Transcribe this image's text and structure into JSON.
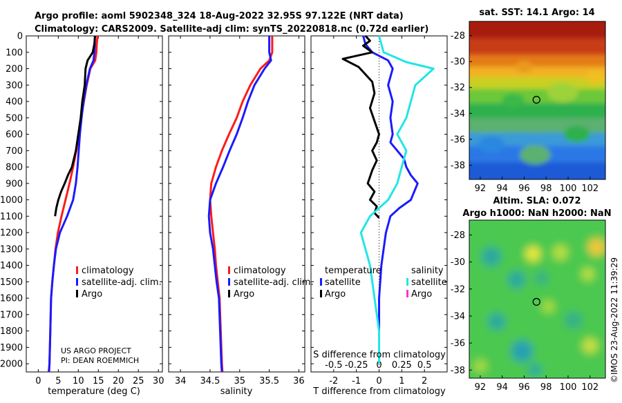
{
  "header": {
    "line1": "Argo profile: aoml 5902348_324 18-Aug-2022 32.95S 97.122E (NRT data)",
    "line2": "Climatology: CARS2009. Satellite-adj clim: synTS_20220818.nc (0.72d earlier)"
  },
  "colors": {
    "climatology": "#ff1a1a",
    "satellite": "#1a1aff",
    "argo": "#000000",
    "sat_salinity": "#22e5e5",
    "argo_salinity": "#ff33cc"
  },
  "chart_data": [
    {
      "type": "line",
      "title": "",
      "xlabel": "temperature (deg C)",
      "ylabel": "",
      "xlim": [
        -3,
        31
      ],
      "ylim": [
        2050,
        0
      ],
      "xticks": [
        "0",
        "5",
        "10",
        "15",
        "20",
        "25",
        "30"
      ],
      "yticks": [
        "0",
        "100",
        "200",
        "300",
        "400",
        "500",
        "600",
        "700",
        "800",
        "900",
        "1000",
        "1100",
        "1200",
        "1300",
        "1400",
        "1500",
        "1600",
        "1700",
        "1800",
        "1900",
        "2000"
      ],
      "legend": [
        "climatology",
        "satellite-adj. clim.",
        "Argo"
      ],
      "credit": [
        "US ARGO PROJECT",
        "PI: DEAN ROEMMICH"
      ],
      "series": [
        {
          "name": "climatology",
          "x": [
            14.8,
            14.6,
            14.5,
            14.2,
            13.0,
            12.1,
            11.4,
            10.7,
            10.1,
            9.5,
            8.7,
            7.8,
            6.8,
            5.8,
            4.9,
            4.3,
            3.9,
            3.5,
            3.2,
            3.0,
            2.8,
            2.6
          ],
          "depth": [
            0,
            50,
            100,
            150,
            200,
            300,
            400,
            500,
            600,
            700,
            800,
            900,
            1000,
            1100,
            1200,
            1300,
            1400,
            1500,
            1600,
            1800,
            2000,
            2050
          ]
        },
        {
          "name": "satellite-adj. clim.",
          "x": [
            14.1,
            14.1,
            14.0,
            13.8,
            12.9,
            12.0,
            11.3,
            10.8,
            10.4,
            10.1,
            9.8,
            9.4,
            8.7,
            7.2,
            5.4,
            4.4,
            3.9,
            3.5,
            3.2,
            3.0,
            2.8,
            2.7
          ],
          "depth": [
            0,
            50,
            100,
            150,
            200,
            300,
            400,
            500,
            600,
            700,
            800,
            900,
            1000,
            1100,
            1200,
            1300,
            1400,
            1500,
            1600,
            1800,
            2000,
            2050
          ]
        },
        {
          "name": "Argo",
          "x": [
            14.2,
            14.0,
            13.6,
            12.3,
            11.8,
            11.6,
            11.0,
            10.6,
            10.0,
            9.4,
            8.4,
            7.4,
            6.6,
            5.7,
            5.0,
            4.5,
            4.2
          ],
          "depth": [
            0,
            50,
            100,
            150,
            200,
            300,
            400,
            500,
            600,
            700,
            800,
            850,
            900,
            950,
            1000,
            1050,
            1100
          ]
        }
      ]
    },
    {
      "type": "line",
      "xlabel": "salinity",
      "xlim": [
        33.8,
        36.1
      ],
      "ylim": [
        2050,
        0
      ],
      "xticks": [
        "34",
        "34.5",
        "35",
        "35.5",
        "36"
      ],
      "legend": [
        "climatology",
        "satellite-adj. clim.",
        "Argo"
      ],
      "series": [
        {
          "name": "climatology",
          "x": [
            35.55,
            35.55,
            35.5,
            35.35,
            35.18,
            35.05,
            34.95,
            34.82,
            34.7,
            34.6,
            34.52,
            34.5,
            34.52,
            34.55,
            34.58,
            34.6,
            34.63,
            34.66,
            34.68,
            34.7,
            34.71
          ],
          "depth": [
            0,
            100,
            150,
            200,
            300,
            400,
            500,
            600,
            700,
            800,
            900,
            1000,
            1100,
            1200,
            1300,
            1400,
            1500,
            1600,
            1800,
            2000,
            2050
          ]
        },
        {
          "name": "satellite-adj. clim.",
          "x": [
            35.5,
            35.5,
            35.53,
            35.42,
            35.25,
            35.14,
            35.05,
            34.95,
            34.83,
            34.72,
            34.6,
            34.5,
            34.48,
            34.5,
            34.55,
            34.58,
            34.61,
            34.65,
            34.67,
            34.69,
            34.7
          ],
          "depth": [
            0,
            100,
            150,
            200,
            300,
            400,
            500,
            600,
            700,
            800,
            900,
            1000,
            1100,
            1200,
            1300,
            1400,
            1500,
            1600,
            1800,
            2000,
            2050
          ]
        }
      ]
    },
    {
      "type": "line",
      "xlabel": "T difference from climatology",
      "xlabel2": "S difference from climatology",
      "xlim": [
        -3,
        3
      ],
      "ylim": [
        2050,
        0
      ],
      "xticks": [
        "-2",
        "-1",
        "0",
        "1",
        "2"
      ],
      "xticks2": [
        "-0.5",
        "-0.25",
        "0",
        "0.25",
        "0.5"
      ],
      "legend_temperature": {
        "heading": "temperature",
        "items": [
          "satellite",
          "Argo"
        ]
      },
      "legend_salinity": {
        "heading": "salinity",
        "items": [
          "satellite",
          "Argo"
        ]
      },
      "series": [
        {
          "name": "temperature satellite",
          "x": [
            -0.7,
            -0.6,
            -0.3,
            0.4,
            0.6,
            0.4,
            0.6,
            0.5,
            0.6,
            0.5,
            0.8,
            1.1,
            1.2,
            1.4,
            1.7,
            1.4,
            0.9,
            0.5,
            0.3,
            0.1,
            0.0,
            0.0,
            0.0
          ],
          "depth": [
            0,
            50,
            100,
            150,
            200,
            300,
            400,
            500,
            600,
            650,
            700,
            750,
            800,
            850,
            900,
            1000,
            1050,
            1100,
            1200,
            1400,
            1600,
            1800,
            2000
          ]
        },
        {
          "name": "temperature Argo",
          "x": [
            -0.6,
            -0.4,
            -0.7,
            -0.3,
            -1.6,
            -0.9,
            -0.3,
            -0.2,
            -0.4,
            -0.2,
            0.0,
            -0.1,
            -0.3,
            -0.1,
            -0.3,
            -0.5,
            -0.2,
            -0.4,
            -0.1,
            -0.2,
            0.0
          ],
          "depth": [
            0,
            30,
            60,
            100,
            140,
            190,
            280,
            350,
            440,
            520,
            600,
            650,
            700,
            760,
            820,
            900,
            950,
            1000,
            1040,
            1080,
            1110
          ]
        },
        {
          "name": "salinity satellite",
          "x": [
            0.0,
            0.05,
            0.3,
            0.6,
            0.4,
            0.3,
            0.2,
            0.3,
            0.25,
            0.2,
            0.1,
            -0.1,
            -0.2,
            -0.1,
            -0.05,
            0.0,
            0.0,
            0.0
          ],
          "depth": [
            0,
            100,
            160,
            200,
            300,
            500,
            600,
            700,
            800,
            900,
            1000,
            1100,
            1200,
            1400,
            1600,
            1800,
            1900,
            2000
          ]
        },
        {
          "name": "salinity Argo",
          "x": [
            0.0
          ],
          "depth": [
            0
          ]
        }
      ]
    },
    {
      "type": "heatmap",
      "title": "sat. SST: 14.1 Argo: 14",
      "xticks": [
        "92",
        "94",
        "96",
        "98",
        "100",
        "102"
      ],
      "yticks": [
        "-28",
        "-30",
        "-32",
        "-34",
        "-36",
        "-38"
      ],
      "xlim": [
        91,
        103.4
      ],
      "ylim": [
        -39.1,
        -26.9
      ],
      "marker": {
        "lon": 97.122,
        "lat": -32.95
      },
      "color_bands": [
        {
          "lat": -27.5,
          "color": "#a81a0a"
        },
        {
          "lat": -29.0,
          "color": "#c83c14"
        },
        {
          "lat": -30.0,
          "color": "#e47a18"
        },
        {
          "lat": -30.8,
          "color": "#f2b020"
        },
        {
          "lat": -31.6,
          "color": "#c8d024"
        },
        {
          "lat": -32.6,
          "color": "#6cc838"
        },
        {
          "lat": -33.8,
          "color": "#2eb04e"
        },
        {
          "lat": -35.0,
          "color": "#5cb070"
        },
        {
          "lat": -36.0,
          "color": "#3a9ad8"
        },
        {
          "lat": -37.0,
          "color": "#2a78e6"
        },
        {
          "lat": -38.5,
          "color": "#1c5ad6"
        }
      ]
    },
    {
      "type": "heatmap",
      "title": "Altim. SLA: 0.072",
      "subtitle": "Argo h1000: NaN h2000: NaN",
      "xticks": [
        "92",
        "94",
        "96",
        "98",
        "100",
        "102"
      ],
      "yticks": [
        "-28",
        "-30",
        "-32",
        "-34",
        "-36",
        "-38"
      ],
      "xlim": [
        91,
        103.4
      ],
      "ylim": [
        -38.6,
        -26.9
      ],
      "marker": {
        "lon": 97.122,
        "lat": -32.95
      },
      "base_color": "#4cc850",
      "blobs": [
        {
          "lon": 93.0,
          "lat": -29.6,
          "r": 0.9,
          "color": "#2aa8a0"
        },
        {
          "lon": 95.3,
          "lat": -31.3,
          "r": 0.8,
          "color": "#2aa8a0"
        },
        {
          "lon": 97.6,
          "lat": -31.2,
          "r": 0.6,
          "color": "#34b088"
        },
        {
          "lon": 93.5,
          "lat": -34.4,
          "r": 0.8,
          "color": "#2aa8a0"
        },
        {
          "lon": 95.8,
          "lat": -36.6,
          "r": 1.0,
          "color": "#28a0b0"
        },
        {
          "lon": 100.5,
          "lat": -34.3,
          "r": 0.8,
          "color": "#34b088"
        },
        {
          "lon": 97.0,
          "lat": -38.0,
          "r": 0.6,
          "color": "#2aa8a0"
        },
        {
          "lon": 96.8,
          "lat": -29.4,
          "r": 0.7,
          "color": "#e8e83a"
        },
        {
          "lon": 102.6,
          "lat": -28.9,
          "r": 0.8,
          "color": "#f0c838"
        },
        {
          "lon": 99.3,
          "lat": -29.3,
          "r": 0.7,
          "color": "#b8e040"
        },
        {
          "lon": 101.8,
          "lat": -30.9,
          "r": 0.6,
          "color": "#b8e040"
        },
        {
          "lon": 98.2,
          "lat": -33.3,
          "r": 0.6,
          "color": "#a8dc40"
        },
        {
          "lon": 102.0,
          "lat": -36.2,
          "r": 0.7,
          "color": "#c8e040"
        },
        {
          "lon": 92.0,
          "lat": -37.7,
          "r": 0.6,
          "color": "#a8dc40"
        }
      ]
    }
  ],
  "timestamp": "©IMOS 23-Aug-2022 11:39:29"
}
